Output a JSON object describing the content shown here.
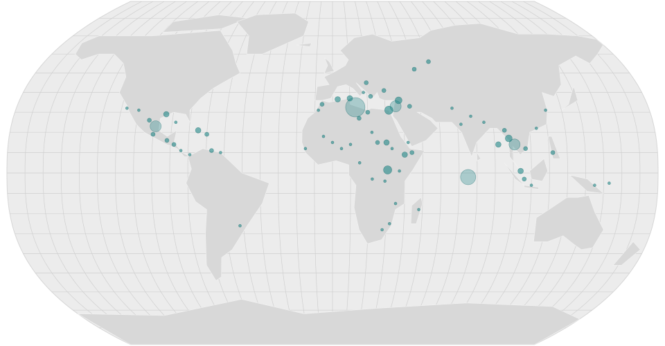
{
  "map": {
    "projection": "natural-earth",
    "graticule_step_degrees": 10,
    "colors": {
      "ocean": "#ececec",
      "land": "#d8d8d8",
      "graticule": "#cfcfcf",
      "bubble_fill": "#0f7f80",
      "bubble_stroke": "#0b6566"
    },
    "bubbles": [
      {
        "lon": 13,
        "lat": 32.5,
        "size": 14
      },
      {
        "lon": 75,
        "lat": -2,
        "size": 11
      },
      {
        "lon": 30.5,
        "lat": 1.5,
        "size": 6
      },
      {
        "lon": 36,
        "lat": 33,
        "size": 8
      },
      {
        "lon": 32,
        "lat": 31,
        "size": 6
      },
      {
        "lon": 38,
        "lat": 36,
        "size": 5
      },
      {
        "lon": 44,
        "lat": 33,
        "size": 3
      },
      {
        "lon": 30,
        "lat": 41,
        "size": 3
      },
      {
        "lon": 20,
        "lat": 45,
        "size": 3
      },
      {
        "lon": 18,
        "lat": 40,
        "size": 2
      },
      {
        "lon": 22,
        "lat": 38,
        "size": 3
      },
      {
        "lon": 10,
        "lat": 37,
        "size": 4
      },
      {
        "lon": 3,
        "lat": 36.5,
        "size": 4
      },
      {
        "lon": -6,
        "lat": 34,
        "size": 3
      },
      {
        "lon": -8,
        "lat": 31,
        "size": 2
      },
      {
        "lon": 50,
        "lat": 52,
        "size": 3
      },
      {
        "lon": 15,
        "lat": 27,
        "size": 3
      },
      {
        "lon": 20,
        "lat": 30,
        "size": 3
      },
      {
        "lon": 25,
        "lat": 15,
        "size": 3
      },
      {
        "lon": 30,
        "lat": 15,
        "size": 4
      },
      {
        "lon": 33,
        "lat": 12,
        "size": 2
      },
      {
        "lon": 22,
        "lat": 20,
        "size": 2
      },
      {
        "lon": 10,
        "lat": 14,
        "size": 2
      },
      {
        "lon": 5,
        "lat": 12,
        "size": 2
      },
      {
        "lon": 0,
        "lat": 15,
        "size": 2
      },
      {
        "lon": -5,
        "lat": 18,
        "size": 2
      },
      {
        "lon": -15,
        "lat": 12,
        "size": 2
      },
      {
        "lon": 40,
        "lat": 9,
        "size": 4
      },
      {
        "lon": 44,
        "lat": 10,
        "size": 3
      },
      {
        "lon": 42,
        "lat": 15,
        "size": 2
      },
      {
        "lon": 37,
        "lat": 1,
        "size": 2
      },
      {
        "lon": 29,
        "lat": -4,
        "size": 2
      },
      {
        "lon": 22,
        "lat": -3,
        "size": 2
      },
      {
        "lon": 15,
        "lat": 5,
        "size": 2
      },
      {
        "lon": 35,
        "lat": -15,
        "size": 2
      },
      {
        "lon": 32,
        "lat": -25,
        "size": 2
      },
      {
        "lon": 28,
        "lat": -28,
        "size": 2
      },
      {
        "lon": 48,
        "lat": -18,
        "size": 2
      },
      {
        "lon": 68,
        "lat": 32,
        "size": 2
      },
      {
        "lon": 72,
        "lat": 24,
        "size": 2
      },
      {
        "lon": 78,
        "lat": 28,
        "size": 2
      },
      {
        "lon": 85,
        "lat": 25,
        "size": 2
      },
      {
        "lon": 60,
        "lat": 56,
        "size": 3
      },
      {
        "lon": 98,
        "lat": 17,
        "size": 5
      },
      {
        "lon": 96,
        "lat": 21,
        "size": 3
      },
      {
        "lon": 101,
        "lat": 14,
        "size": 8
      },
      {
        "lon": 92,
        "lat": 14,
        "size": 4
      },
      {
        "lon": 107,
        "lat": 12,
        "size": 3
      },
      {
        "lon": 104,
        "lat": 1,
        "size": 4
      },
      {
        "lon": 106,
        "lat": -3,
        "size": 3
      },
      {
        "lon": 110,
        "lat": -6,
        "size": 2
      },
      {
        "lon": 122,
        "lat": 10,
        "size": 3
      },
      {
        "lon": 114,
        "lat": 22,
        "size": 2
      },
      {
        "lon": 121,
        "lat": 31,
        "size": 2
      },
      {
        "lon": -99,
        "lat": 23,
        "size": 8
      },
      {
        "lon": -94,
        "lat": 29,
        "size": 4
      },
      {
        "lon": -103,
        "lat": 26,
        "size": 3
      },
      {
        "lon": -110,
        "lat": 31,
        "size": 2
      },
      {
        "lon": -117,
        "lat": 32,
        "size": 2
      },
      {
        "lon": -100,
        "lat": 19,
        "size": 3
      },
      {
        "lon": -92,
        "lat": 16,
        "size": 3
      },
      {
        "lon": -88,
        "lat": 14,
        "size": 3
      },
      {
        "lon": -84,
        "lat": 11,
        "size": 2
      },
      {
        "lon": -79,
        "lat": 9,
        "size": 2
      },
      {
        "lon": -75,
        "lat": 21,
        "size": 4
      },
      {
        "lon": -70,
        "lat": 19,
        "size": 3
      },
      {
        "lon": -67,
        "lat": 11,
        "size": 3
      },
      {
        "lon": -62,
        "lat": 10,
        "size": 2
      },
      {
        "lon": -88,
        "lat": 25,
        "size": 2
      },
      {
        "lon": -52,
        "lat": -26,
        "size": 2
      },
      {
        "lon": 153,
        "lat": -5,
        "size": 2
      },
      {
        "lon": 145,
        "lat": -6,
        "size": 2
      }
    ]
  }
}
